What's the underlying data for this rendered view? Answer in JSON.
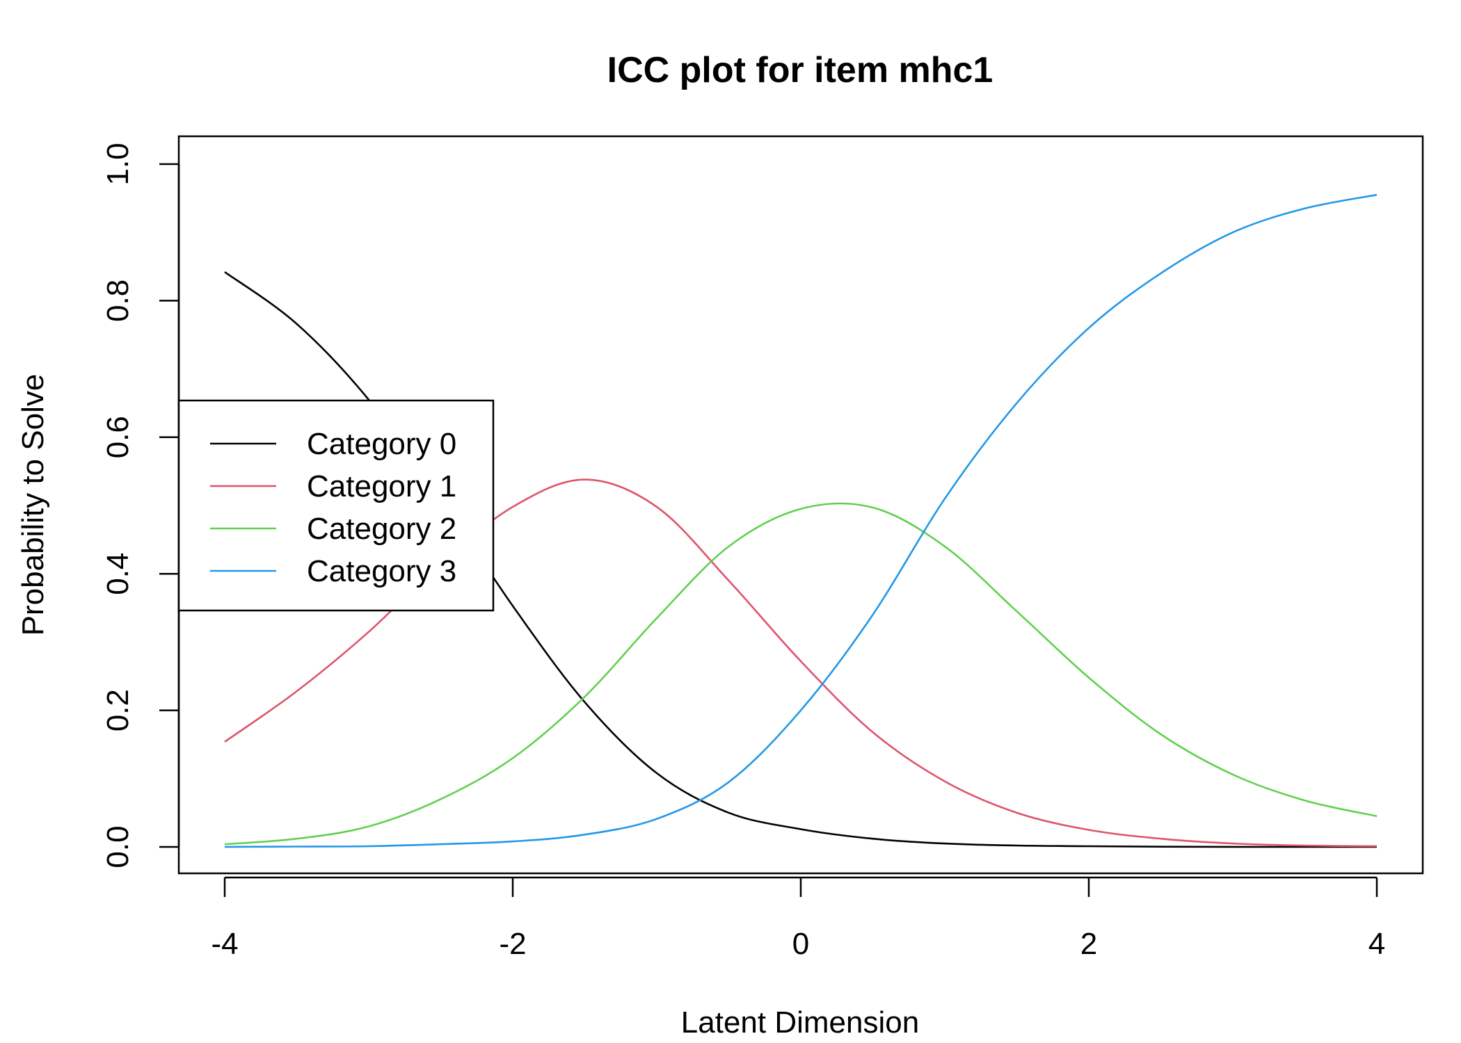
{
  "chart_data": {
    "type": "line",
    "title": "ICC plot for item mhc1",
    "xlabel": "Latent Dimension",
    "ylabel": "Probability to Solve",
    "xlim": [
      -4,
      4
    ],
    "ylim": [
      0,
      1
    ],
    "xticks": [
      "-4",
      "-2",
      "0",
      "2",
      "4"
    ],
    "yticks": [
      "0.0",
      "0.2",
      "0.4",
      "0.6",
      "0.8",
      "1.0"
    ],
    "grid": false,
    "legend_position": "left-center",
    "x": [
      -4.0,
      -3.5,
      -3.0,
      -2.5,
      -2.0,
      -1.5,
      -1.0,
      -0.5,
      0.0,
      0.5,
      1.0,
      1.5,
      2.0,
      2.5,
      3.0,
      3.5,
      4.0
    ],
    "series": [
      {
        "name": "Category 0",
        "color": "#000000",
        "values": [
          0.842,
          0.766,
          0.655,
          0.51,
          0.353,
          0.212,
          0.108,
          0.05,
          0.026,
          0.012,
          0.005,
          0.002,
          0.001,
          0.0003,
          0.0001,
          4e-05,
          1e-05
        ]
      },
      {
        "name": "Category 1",
        "color": "#DF536B",
        "values": [
          0.154,
          0.228,
          0.315,
          0.415,
          0.498,
          0.538,
          0.498,
          0.39,
          0.272,
          0.168,
          0.096,
          0.05,
          0.025,
          0.012,
          0.005,
          0.002,
          0.001
        ]
      },
      {
        "name": "Category 2",
        "color": "#61D04F",
        "values": [
          0.004,
          0.012,
          0.03,
          0.07,
          0.13,
          0.22,
          0.335,
          0.44,
          0.495,
          0.497,
          0.44,
          0.345,
          0.248,
          0.165,
          0.106,
          0.068,
          0.045
        ]
      },
      {
        "name": "Category 3",
        "color": "#2297E6",
        "values": [
          0.0001,
          0.0005,
          0.001,
          0.004,
          0.008,
          0.018,
          0.041,
          0.095,
          0.2,
          0.34,
          0.51,
          0.65,
          0.76,
          0.84,
          0.9,
          0.935,
          0.955
        ]
      }
    ]
  }
}
